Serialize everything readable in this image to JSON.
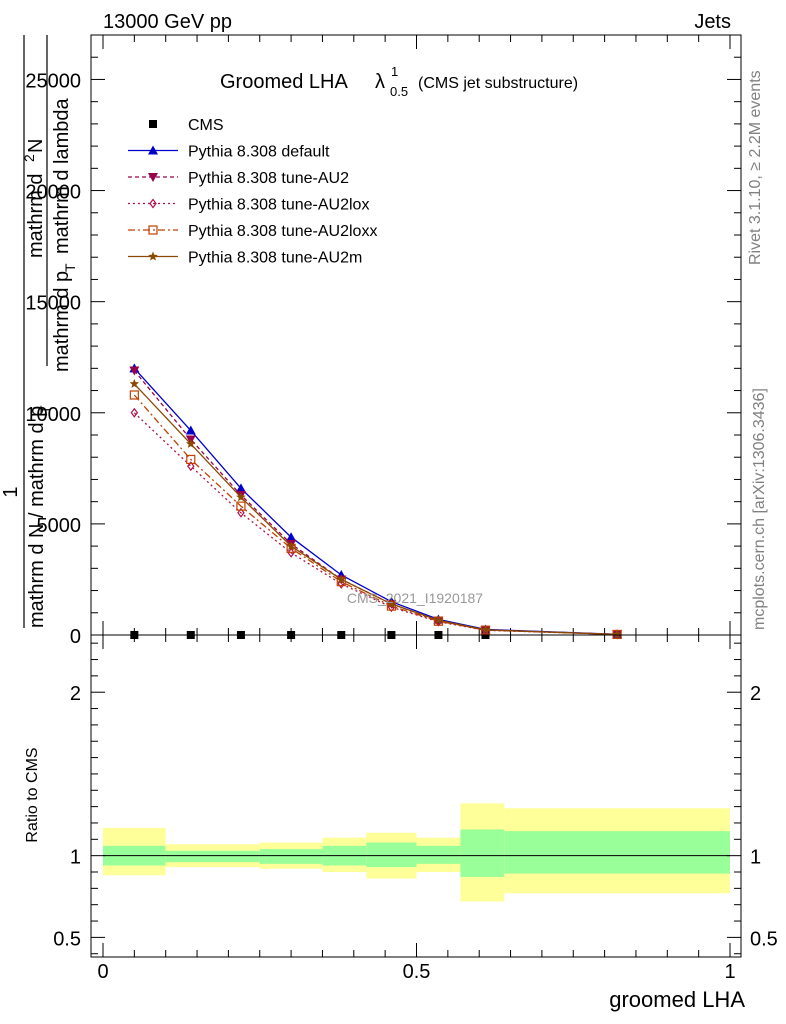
{
  "header": {
    "left": "13000 GeV pp",
    "right": "Jets"
  },
  "title": {
    "main": "Groomed LHA",
    "lambda": "λ",
    "sup": "1",
    "sub": "0.5",
    "suffix": "(CMS jet substructure)"
  },
  "side": {
    "rivet": "Rivet 3.1.10, ≥ 2.2M events",
    "mcplots": "mcplots.cern.ch [arXiv:1306.3436]"
  },
  "watermark": "CMS_2021_I1920187",
  "ylabel_main": {
    "frac1_num": "1",
    "frac1_den": "mathrm d N / mathrm d p",
    "frac1_den_sub": "T",
    "frac2_num": "mathrm d",
    "frac2_num_sup": "2",
    "frac2_num_end": "N",
    "frac2_den": "mathrm d p",
    "frac2_den_sub": "T",
    "frac2_den_end": "mathrm d lambda"
  },
  "ylabel_ratio": "Ratio to CMS",
  "xlabel": "groomed LHA",
  "chart_data": {
    "type": "line",
    "main": {
      "xlim": [
        0,
        1
      ],
      "ylim": [
        0,
        27000
      ],
      "yticks": [
        0,
        5000,
        10000,
        15000,
        20000,
        25000
      ],
      "ytick_labels": [
        "0",
        "5000",
        "10000",
        "15000",
        "20000",
        "25000"
      ],
      "x": [
        0.05,
        0.14,
        0.22,
        0.3,
        0.38,
        0.46,
        0.535,
        0.61,
        0.82
      ],
      "series": [
        {
          "name": "CMS",
          "color": "#000000",
          "marker": "square-filled",
          "dash": "none",
          "values": [
            0,
            0,
            0,
            0,
            0,
            0,
            0,
            0,
            0
          ]
        },
        {
          "name": "Pythia 8.308 default",
          "color": "#0000cc",
          "marker": "triangle-up",
          "dash": "solid",
          "values": [
            12000,
            9200,
            6600,
            4400,
            2700,
            1500,
            700,
            250,
            30
          ]
        },
        {
          "name": "Pythia 8.308 tune-AU2",
          "color": "#99004c",
          "marker": "triangle-down",
          "dash": "4,3",
          "values": [
            11900,
            8800,
            6300,
            4100,
            2500,
            1400,
            650,
            230,
            28
          ]
        },
        {
          "name": "Pythia 8.308 tune-AU2lox",
          "color": "#b0104a",
          "marker": "diamond-open",
          "dash": "2,3",
          "values": [
            10000,
            7600,
            5500,
            3700,
            2300,
            1250,
            600,
            210,
            25
          ]
        },
        {
          "name": "Pythia 8.308 tune-AU2loxx",
          "color": "#c04000",
          "marker": "square-open",
          "dash": "7,3,2,3",
          "values": [
            10800,
            7900,
            5800,
            3900,
            2400,
            1300,
            620,
            220,
            26
          ]
        },
        {
          "name": "Pythia 8.308 tune-AU2m",
          "color": "#8b4a00",
          "marker": "star",
          "dash": "solid",
          "values": [
            11300,
            8600,
            6200,
            4000,
            2500,
            1400,
            660,
            230,
            28
          ]
        }
      ]
    },
    "ratio": {
      "xlim": [
        0,
        1
      ],
      "ylim": [
        0.38,
        2.35
      ],
      "yticks": [
        0.5,
        1,
        2
      ],
      "ytick_labels": [
        "0.5",
        "1",
        "2"
      ],
      "reference": 1,
      "bins": [
        {
          "x0": 0.0,
          "x1": 0.1,
          "inner": [
            0.94,
            1.06
          ],
          "outer": [
            0.88,
            1.17
          ]
        },
        {
          "x0": 0.1,
          "x1": 0.25,
          "inner": [
            0.96,
            1.03
          ],
          "outer": [
            0.93,
            1.07
          ]
        },
        {
          "x0": 0.25,
          "x1": 0.35,
          "inner": [
            0.95,
            1.04
          ],
          "outer": [
            0.92,
            1.08
          ]
        },
        {
          "x0": 0.35,
          "x1": 0.42,
          "inner": [
            0.94,
            1.06
          ],
          "outer": [
            0.9,
            1.11
          ]
        },
        {
          "x0": 0.42,
          "x1": 0.5,
          "inner": [
            0.93,
            1.08
          ],
          "outer": [
            0.86,
            1.14
          ]
        },
        {
          "x0": 0.5,
          "x1": 0.57,
          "inner": [
            0.95,
            1.06
          ],
          "outer": [
            0.9,
            1.11
          ]
        },
        {
          "x0": 0.57,
          "x1": 0.64,
          "inner": [
            0.87,
            1.16
          ],
          "outer": [
            0.72,
            1.32
          ]
        },
        {
          "x0": 0.64,
          "x1": 1.0,
          "inner": [
            0.89,
            1.15
          ],
          "outer": [
            0.77,
            1.29
          ]
        }
      ],
      "inner_color": "#99ff99",
      "outer_color": "#ffff99"
    },
    "xticks": [
      0,
      0.5,
      1
    ],
    "xtick_labels": [
      "0",
      "0.5",
      "1"
    ]
  }
}
